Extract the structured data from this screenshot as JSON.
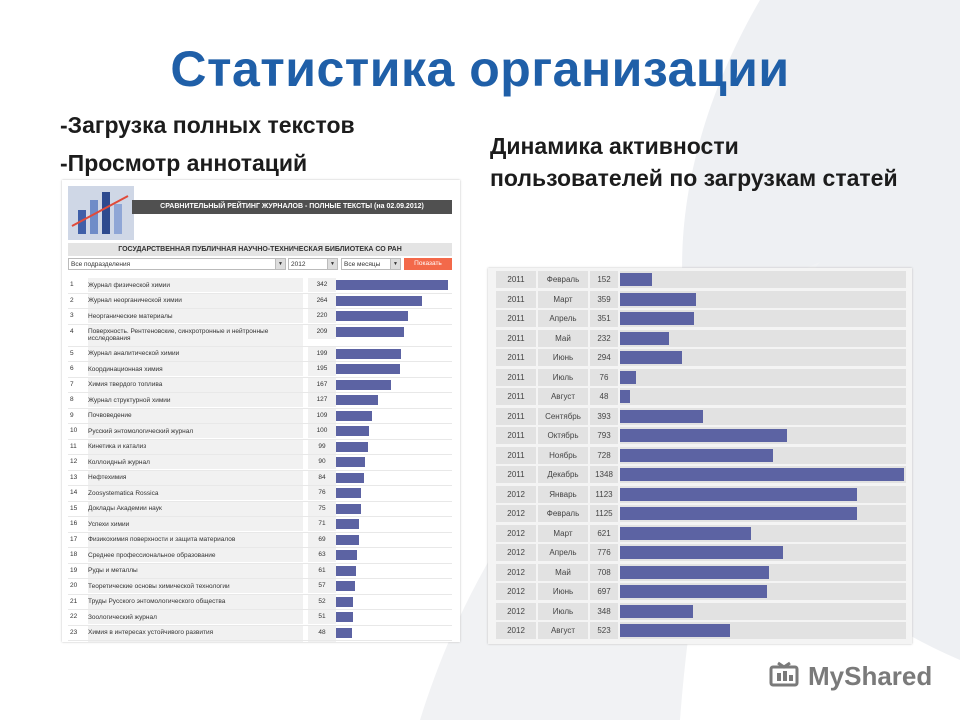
{
  "slide": {
    "title": "Статистика организации",
    "bullets": [
      "-Загрузка полных текстов",
      "-Просмотр аннотаций"
    ],
    "subheading": "Динамика активности пользователей по загрузкам статей"
  },
  "left_panel": {
    "header": "СРАВНИТЕЛЬНЫЙ РЕЙТИНГ ЖУРНАЛОВ - ПОЛНЫЕ ТЕКСТЫ (на 02.09.2012)",
    "organization": "ГОСУДАРСТВЕННАЯ ПУБЛИЧНАЯ НАУЧНО-ТЕХНИЧЕСКАЯ БИБЛИОТЕКА СО РАН",
    "filters": {
      "department": "Все подразделения",
      "year": "2012",
      "month": "Все месяцы",
      "button": "Показать"
    }
  },
  "chart_data": [
    {
      "type": "bar",
      "orientation": "horizontal",
      "categories": [
        "Журнал физической химии",
        "Журнал неорганической химии",
        "Неорганические материалы",
        "Поверхность. Рентгеновские, синхротронные и нейтронные исследования",
        "Журнал аналитической химии",
        "Координационная химия",
        "Химия твердого топлива",
        "Журнал структурной химии",
        "Почвоведение",
        "Русский энтомологический журнал",
        "Кинетика и катализ",
        "Коллоидный журнал",
        "Нефтехимия",
        "Zoosystematica Rossica",
        "Доклады Академии наук",
        "Успехи химии",
        "Физикохимия поверхности и защита материалов",
        "Среднее профессиональное образование",
        "Руды и металлы",
        "Теоретические основы химической технологии",
        "Труды Русского энтомологического общества",
        "Зоологический журнал",
        "Химия в интересах устойчивого развития",
        "Геология и геофизика"
      ],
      "values": [
        342,
        264,
        220,
        209,
        199,
        195,
        167,
        127,
        109,
        100,
        99,
        90,
        84,
        76,
        75,
        71,
        69,
        63,
        61,
        57,
        52,
        51,
        48,
        47
      ],
      "bar_color": "#5c63a3"
    },
    {
      "type": "bar",
      "orientation": "horizontal",
      "rows": [
        {
          "year": "2011",
          "month": "Февраль",
          "value": 152
        },
        {
          "year": "2011",
          "month": "Март",
          "value": 359
        },
        {
          "year": "2011",
          "month": "Апрель",
          "value": 351
        },
        {
          "year": "2011",
          "month": "Май",
          "value": 232
        },
        {
          "year": "2011",
          "month": "Июнь",
          "value": 294
        },
        {
          "year": "2011",
          "month": "Июль",
          "value": 76
        },
        {
          "year": "2011",
          "month": "Август",
          "value": 48
        },
        {
          "year": "2011",
          "month": "Сентябрь",
          "value": 393
        },
        {
          "year": "2011",
          "month": "Октябрь",
          "value": 793
        },
        {
          "year": "2011",
          "month": "Ноябрь",
          "value": 728
        },
        {
          "year": "2011",
          "month": "Декабрь",
          "value": 1348
        },
        {
          "year": "2012",
          "month": "Январь",
          "value": 1123
        },
        {
          "year": "2012",
          "month": "Февраль",
          "value": 1125
        },
        {
          "year": "2012",
          "month": "Март",
          "value": 621
        },
        {
          "year": "2012",
          "month": "Апрель",
          "value": 776
        },
        {
          "year": "2012",
          "month": "Май",
          "value": 708
        },
        {
          "year": "2012",
          "month": "Июнь",
          "value": 697
        },
        {
          "year": "2012",
          "month": "Июль",
          "value": 348
        },
        {
          "year": "2012",
          "month": "Август",
          "value": 523
        }
      ],
      "bar_color": "#5c63a3"
    }
  ],
  "watermark": {
    "text": "MyShared",
    "icon": "myshared-logo-icon"
  }
}
